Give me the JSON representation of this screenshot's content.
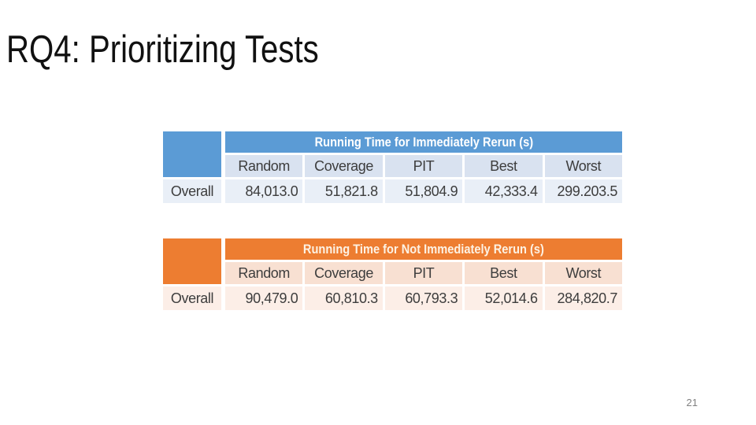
{
  "slide": {
    "title": "RQ4: Prioritizing Tests",
    "page_number": "21"
  },
  "colors": {
    "blue_header": "#5B9BD5",
    "blue_column_row": "#D9E2F0",
    "blue_data_row": "#E9EFF7",
    "orange_header": "#ED7D31",
    "orange_column_row": "#F8E0D2",
    "orange_data_row": "#FCEEE7",
    "table_text": "#3d3d3d",
    "title_text": "#111111",
    "page_number_text": "#808080"
  },
  "tables": [
    {
      "theme": "blue",
      "header": "Running Time for Immediately Rerun (s)",
      "columns": [
        "Random",
        "Coverage",
        "PIT",
        "Best",
        "Worst"
      ],
      "row_label": "Overall",
      "values": [
        "84,013.0",
        "51,821.8",
        "51,804.9",
        "42,333.4",
        "299.203.5"
      ]
    },
    {
      "theme": "orange",
      "header": "Running Time for Not Immediately Rerun (s)",
      "columns": [
        "Random",
        "Coverage",
        "PIT",
        "Best",
        "Worst"
      ],
      "row_label": "Overall",
      "values": [
        "90,479.0",
        "60,810.3",
        "60,793.3",
        "52,014.6",
        "284,820.7"
      ]
    }
  ]
}
